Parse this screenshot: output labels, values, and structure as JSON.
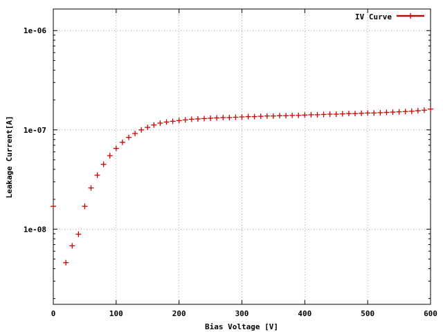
{
  "chart_data": {
    "type": "scatter",
    "xlabel": "Bias Voltage [V]",
    "ylabel": "Leakage Current[A]",
    "xlim": [
      0,
      600
    ],
    "ylim": [
      1.75e-09,
      1.65e-06
    ],
    "yscale": "log",
    "grid": true,
    "legend_position": "top-right",
    "x_ticks": [
      0,
      100,
      200,
      300,
      400,
      500,
      600
    ],
    "x_tick_labels": [
      "0",
      "100",
      "200",
      "300",
      "400",
      "500",
      "600"
    ],
    "y_ticks": [
      1e-08,
      1e-07,
      1e-06
    ],
    "y_tick_labels": [
      "1e-08",
      "1e-07",
      "1e-06"
    ],
    "series": [
      {
        "name": "IV Curve",
        "color": "#cc0000",
        "marker": "plus",
        "x": [
          0,
          20,
          30,
          40,
          50,
          60,
          70,
          80,
          90,
          100,
          110,
          120,
          130,
          140,
          150,
          160,
          170,
          180,
          190,
          200,
          210,
          220,
          230,
          240,
          250,
          260,
          270,
          280,
          290,
          300,
          310,
          320,
          330,
          340,
          350,
          360,
          370,
          380,
          390,
          400,
          410,
          420,
          430,
          440,
          450,
          460,
          470,
          480,
          490,
          500,
          510,
          520,
          530,
          540,
          550,
          560,
          570,
          580,
          590,
          600
        ],
        "y": [
          1.7e-08,
          4.6e-09,
          6.8e-09,
          8.9e-09,
          1.7e-08,
          2.6e-08,
          3.5e-08,
          4.5e-08,
          5.5e-08,
          6.5e-08,
          7.5e-08,
          8.4e-08,
          9.2e-08,
          1e-07,
          1.06e-07,
          1.12e-07,
          1.17e-07,
          1.2e-07,
          1.22e-07,
          1.24e-07,
          1.26e-07,
          1.28e-07,
          1.29e-07,
          1.3e-07,
          1.31e-07,
          1.32e-07,
          1.33e-07,
          1.33e-07,
          1.34e-07,
          1.35e-07,
          1.36e-07,
          1.36e-07,
          1.37e-07,
          1.38e-07,
          1.38e-07,
          1.39e-07,
          1.39e-07,
          1.4e-07,
          1.4e-07,
          1.41e-07,
          1.42e-07,
          1.42e-07,
          1.43e-07,
          1.44e-07,
          1.44e-07,
          1.45e-07,
          1.46e-07,
          1.46e-07,
          1.47e-07,
          1.48e-07,
          1.48e-07,
          1.49e-07,
          1.5e-07,
          1.51e-07,
          1.52e-07,
          1.53e-07,
          1.54e-07,
          1.56e-07,
          1.58e-07,
          1.62e-07
        ]
      }
    ]
  }
}
